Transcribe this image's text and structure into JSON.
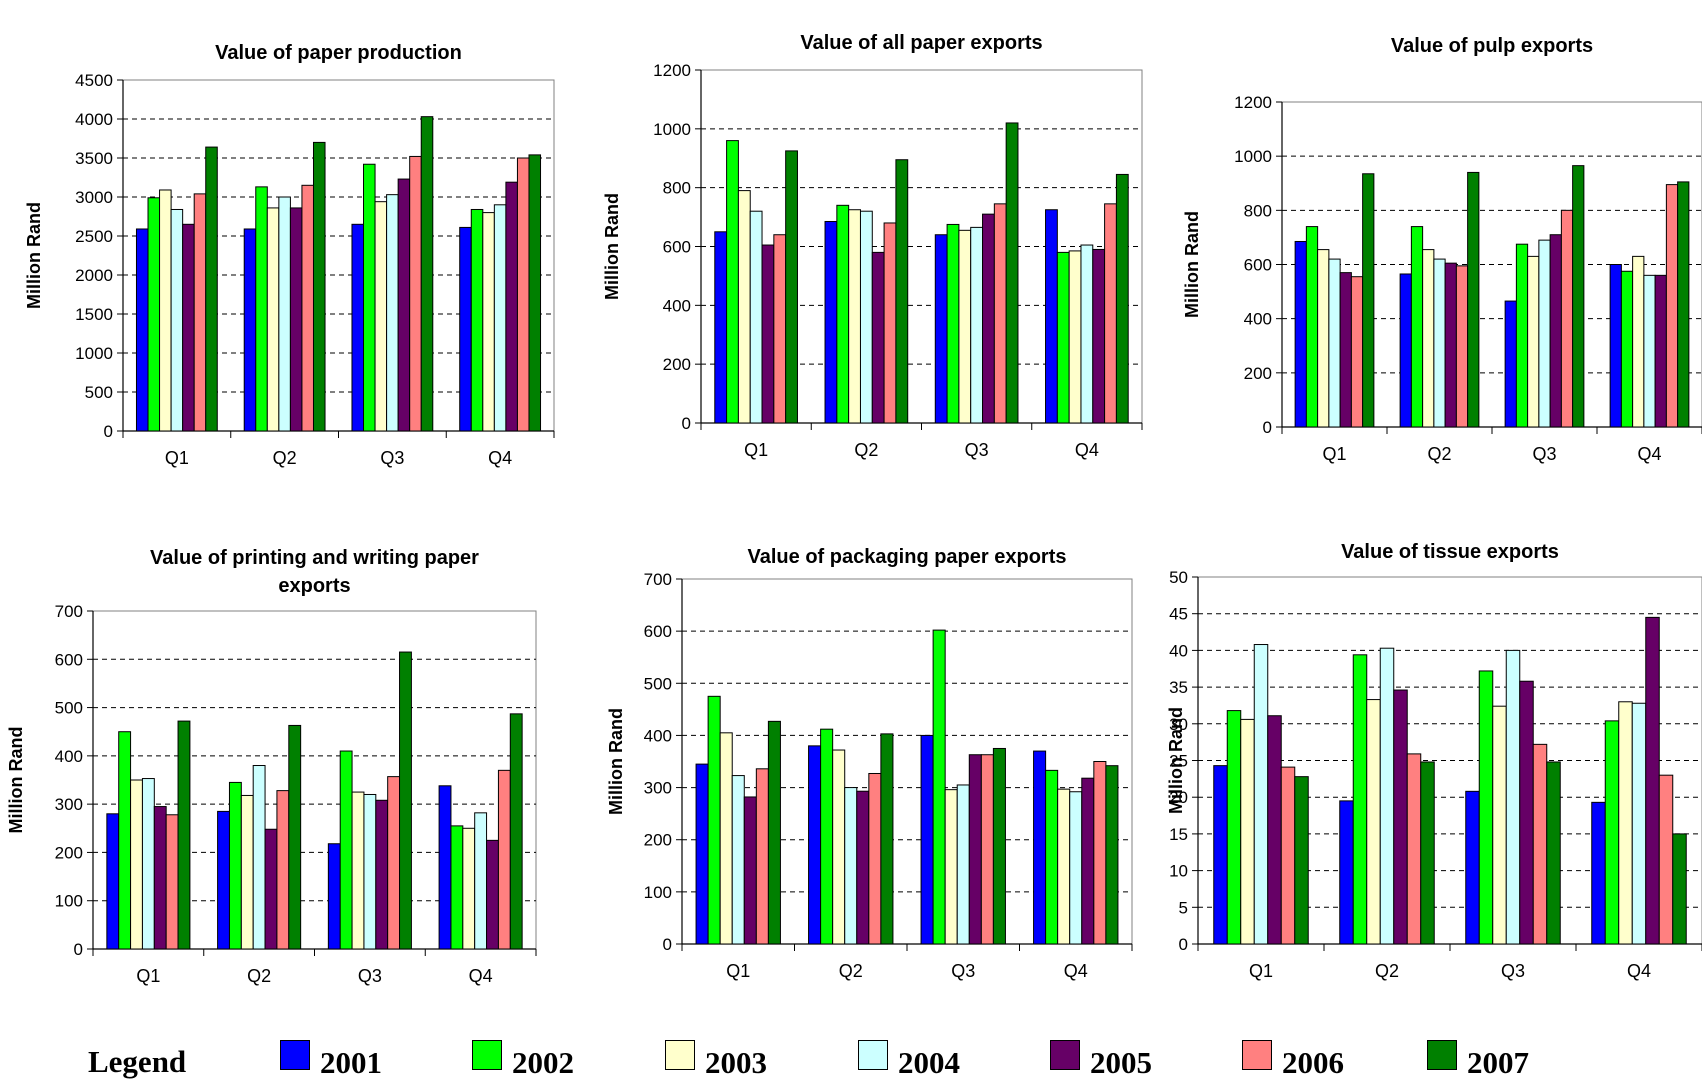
{
  "chart_data": [
    {
      "type": "bar",
      "title": "Value of paper production",
      "ylabel": "Million Rand",
      "categories": [
        "Q1",
        "Q2",
        "Q3",
        "Q4"
      ],
      "ylim": [
        0,
        4500
      ],
      "yticks": [
        0,
        500,
        1000,
        1500,
        2000,
        2500,
        3000,
        3500,
        4000,
        4500
      ],
      "grid": true,
      "series": [
        {
          "name": "2001",
          "values": [
            2590,
            2590,
            2650,
            2610
          ]
        },
        {
          "name": "2002",
          "values": [
            2990,
            3130,
            3420,
            2840
          ]
        },
        {
          "name": "2003",
          "values": [
            3090,
            2860,
            2940,
            2800
          ]
        },
        {
          "name": "2004",
          "values": [
            2840,
            3000,
            3030,
            2900
          ]
        },
        {
          "name": "2005",
          "values": [
            2650,
            2860,
            3230,
            3190
          ]
        },
        {
          "name": "2006",
          "values": [
            3040,
            3150,
            3520,
            3500
          ]
        },
        {
          "name": "2007",
          "values": [
            3640,
            3700,
            4030,
            3540
          ]
        }
      ]
    },
    {
      "type": "bar",
      "title": "Value of all paper exports",
      "ylabel": "Million Rand",
      "categories": [
        "Q1",
        "Q2",
        "Q3",
        "Q4"
      ],
      "ylim": [
        0,
        1200
      ],
      "yticks": [
        0,
        200,
        400,
        600,
        800,
        1000,
        1200
      ],
      "grid": true,
      "series": [
        {
          "name": "2001",
          "values": [
            650,
            685,
            640,
            725
          ]
        },
        {
          "name": "2002",
          "values": [
            960,
            740,
            675,
            580
          ]
        },
        {
          "name": "2003",
          "values": [
            790,
            725,
            655,
            585
          ]
        },
        {
          "name": "2004",
          "values": [
            720,
            720,
            665,
            605
          ]
        },
        {
          "name": "2005",
          "values": [
            605,
            580,
            710,
            590
          ]
        },
        {
          "name": "2006",
          "values": [
            640,
            680,
            745,
            745
          ]
        },
        {
          "name": "2007",
          "values": [
            925,
            895,
            1020,
            845
          ]
        }
      ]
    },
    {
      "type": "bar",
      "title": "Value of pulp exports",
      "ylabel": "Million Rand",
      "categories": [
        "Q1",
        "Q2",
        "Q3",
        "Q4"
      ],
      "ylim": [
        0,
        1200
      ],
      "yticks": [
        0,
        200,
        400,
        600,
        800,
        1000,
        1200
      ],
      "grid": true,
      "series": [
        {
          "name": "2001",
          "values": [
            685,
            565,
            465,
            600
          ]
        },
        {
          "name": "2002",
          "values": [
            740,
            740,
            675,
            575
          ]
        },
        {
          "name": "2003",
          "values": [
            655,
            655,
            630,
            630
          ]
        },
        {
          "name": "2004",
          "values": [
            620,
            620,
            690,
            560
          ]
        },
        {
          "name": "2005",
          "values": [
            570,
            605,
            710,
            560
          ]
        },
        {
          "name": "2006",
          "values": [
            555,
            595,
            800,
            895
          ]
        },
        {
          "name": "2007",
          "values": [
            935,
            940,
            965,
            905
          ]
        }
      ]
    },
    {
      "type": "bar",
      "title": "Value of printing and writing paper exports",
      "title_lines": [
        "Value of printing and writing paper",
        "exports"
      ],
      "ylabel": "Million Rand",
      "categories": [
        "Q1",
        "Q2",
        "Q3",
        "Q4"
      ],
      "ylim": [
        0,
        700
      ],
      "yticks": [
        0,
        100,
        200,
        300,
        400,
        500,
        600,
        700
      ],
      "grid": true,
      "series": [
        {
          "name": "2001",
          "values": [
            280,
            285,
            218,
            338
          ]
        },
        {
          "name": "2002",
          "values": [
            450,
            345,
            410,
            255
          ]
        },
        {
          "name": "2003",
          "values": [
            350,
            318,
            325,
            250
          ]
        },
        {
          "name": "2004",
          "values": [
            353,
            380,
            320,
            282
          ]
        },
        {
          "name": "2005",
          "values": [
            295,
            248,
            308,
            225
          ]
        },
        {
          "name": "2006",
          "values": [
            278,
            328,
            357,
            370
          ]
        },
        {
          "name": "2007",
          "values": [
            472,
            463,
            615,
            487
          ]
        }
      ]
    },
    {
      "type": "bar",
      "title": "Value of packaging paper exports",
      "ylabel": "Million Rand",
      "categories": [
        "Q1",
        "Q2",
        "Q3",
        "Q4"
      ],
      "ylim": [
        0,
        700
      ],
      "yticks": [
        0,
        100,
        200,
        300,
        400,
        500,
        600,
        700
      ],
      "grid": true,
      "series": [
        {
          "name": "2001",
          "values": [
            345,
            380,
            400,
            370
          ]
        },
        {
          "name": "2002",
          "values": [
            475,
            412,
            602,
            333
          ]
        },
        {
          "name": "2003",
          "values": [
            405,
            372,
            296,
            297
          ]
        },
        {
          "name": "2004",
          "values": [
            323,
            300,
            305,
            292
          ]
        },
        {
          "name": "2005",
          "values": [
            282,
            293,
            363,
            318
          ]
        },
        {
          "name": "2006",
          "values": [
            336,
            327,
            363,
            350
          ]
        },
        {
          "name": "2007",
          "values": [
            427,
            403,
            375,
            342
          ]
        }
      ]
    },
    {
      "type": "bar",
      "title": "Value of tissue exports",
      "ylabel": "Million Rand",
      "categories": [
        "Q1",
        "Q2",
        "Q3",
        "Q4"
      ],
      "ylim": [
        0,
        50
      ],
      "yticks": [
        0,
        5,
        10,
        15,
        20,
        25,
        30,
        35,
        40,
        45,
        50
      ],
      "grid": true,
      "series": [
        {
          "name": "2001",
          "values": [
            24.3,
            19.5,
            20.8,
            19.3
          ]
        },
        {
          "name": "2002",
          "values": [
            31.8,
            39.4,
            37.2,
            30.4
          ]
        },
        {
          "name": "2003",
          "values": [
            30.6,
            33.3,
            32.4,
            33.0
          ]
        },
        {
          "name": "2004",
          "values": [
            40.8,
            40.3,
            40.0,
            32.8
          ]
        },
        {
          "name": "2005",
          "values": [
            31.1,
            34.6,
            35.8,
            44.5
          ]
        },
        {
          "name": "2006",
          "values": [
            24.1,
            25.9,
            27.2,
            23.0
          ]
        },
        {
          "name": "2007",
          "values": [
            22.8,
            24.8,
            24.8,
            15.0
          ]
        }
      ]
    }
  ],
  "legend": {
    "title": "Legend",
    "items": [
      {
        "label": "2001",
        "color": "#0000ff"
      },
      {
        "label": "2002",
        "color": "#00ff00"
      },
      {
        "label": "2003",
        "color": "#ffffcc"
      },
      {
        "label": "2004",
        "color": "#ccffff"
      },
      {
        "label": "2005",
        "color": "#660066"
      },
      {
        "label": "2006",
        "color": "#ff8080"
      },
      {
        "label": "2007",
        "color": "#008000"
      }
    ]
  }
}
